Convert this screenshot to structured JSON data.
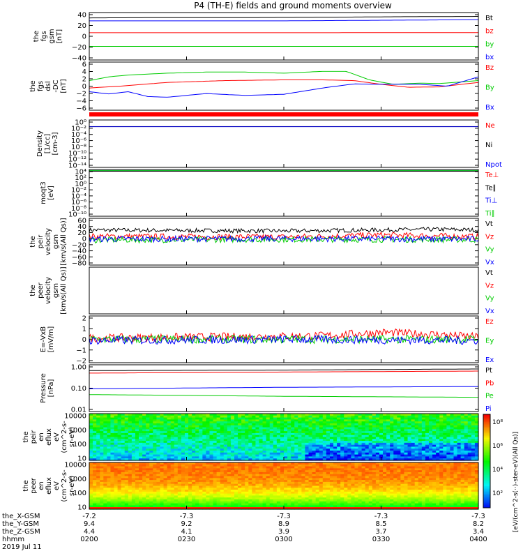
{
  "title": "P4 (TH-E) fields and ground moments overview",
  "date_label": "2019 Jul 11",
  "xaxis": {
    "rows": [
      {
        "label": "the_X-GSM",
        "values": [
          "-7.2",
          "-7.3",
          "-7.3",
          "-7.3",
          "-7.3"
        ]
      },
      {
        "label": "the_Y-GSM",
        "values": [
          "9.4",
          "9.2",
          "8.9",
          "8.5",
          "8.2"
        ]
      },
      {
        "label": "the_Z-GSM",
        "values": [
          "4.4",
          "4.1",
          "3.9",
          "3.7",
          "3.4"
        ]
      },
      {
        "label": "hhmm",
        "values": [
          "0200",
          "0230",
          "0300",
          "0330",
          "0400"
        ]
      }
    ]
  },
  "chart_data": [
    {
      "type": "line",
      "ylabel": [
        "the",
        "fgs",
        "gsm",
        "[nT]"
      ],
      "ylim": [
        -40,
        40
      ],
      "yticks": [
        "40",
        "20",
        "0",
        "−20",
        "−40"
      ],
      "series": [
        {
          "name": "Bt",
          "color": "#000000",
          "x": [
            0,
            0.2,
            0.4,
            0.6,
            0.8,
            1.0
          ],
          "values": [
            31,
            31.5,
            31.5,
            32,
            33,
            33.5
          ]
        },
        {
          "name": "bz",
          "color": "#ff0000",
          "x": [
            0,
            0.5,
            1.0
          ],
          "values": [
            6,
            6,
            6.2
          ]
        },
        {
          "name": "by",
          "color": "#00cc00",
          "x": [
            0,
            0.5,
            1.0
          ],
          "values": [
            -17,
            -17,
            -17
          ]
        },
        {
          "name": "bx",
          "color": "#0000ff",
          "x": [
            0,
            0.25,
            0.5,
            0.75,
            1.0
          ],
          "values": [
            26,
            26,
            26,
            27,
            28
          ]
        }
      ]
    },
    {
      "type": "line",
      "ylabel": [
        "the",
        "fgs",
        "dsl",
        "-DC",
        "[nT]"
      ],
      "ylim": [
        -7,
        6
      ],
      "yticks": [
        "6",
        "4",
        "2",
        "0",
        "−2",
        "−4",
        "−6"
      ],
      "series": [
        {
          "name": "Bz",
          "color": "#ff0000",
          "x": [
            0,
            0.08,
            0.2,
            0.35,
            0.5,
            0.6,
            0.68,
            0.75,
            0.82,
            0.9,
            1.0
          ],
          "values": [
            -1,
            -0.5,
            0.5,
            1,
            1.2,
            1.2,
            1.0,
            0,
            -0.8,
            -0.7,
            0.5
          ]
        },
        {
          "name": "By",
          "color": "#00cc00",
          "x": [
            0,
            0.05,
            0.1,
            0.2,
            0.3,
            0.4,
            0.5,
            0.6,
            0.66,
            0.72,
            0.78,
            0.85,
            0.9,
            1.0
          ],
          "values": [
            1,
            2,
            2.5,
            3,
            3.3,
            3.3,
            3,
            3.5,
            3.5,
            1.2,
            0,
            0.3,
            0.2,
            1
          ]
        },
        {
          "name": "Bx",
          "color": "#0000ff",
          "x": [
            0,
            0.05,
            0.1,
            0.15,
            0.2,
            0.3,
            0.4,
            0.5,
            0.6,
            0.68,
            0.75,
            0.85,
            0.92,
            1.0
          ],
          "values": [
            -2,
            -2.6,
            -2,
            -3.3,
            -3.5,
            -2.5,
            -3,
            -2.7,
            -1,
            0.1,
            0,
            0,
            -0.5,
            2
          ]
        }
      ]
    },
    {
      "type": "line",
      "ylabel": [
        "Density",
        "[1/cc]",
        "[cm-3]"
      ],
      "scale": "log",
      "ylim": [
        1e-14,
        100.0
      ],
      "yticks": [
        "10⁰",
        "10⁻²",
        "10⁻⁴",
        "10⁻⁶",
        "10⁻⁸",
        "10⁻¹⁰",
        "10⁻¹²",
        "10⁻¹⁴"
      ],
      "series": [
        {
          "name": "Ne",
          "color": "#ff0000",
          "x": [
            0,
            1
          ],
          "values": [
            0.6,
            0.6
          ]
        },
        {
          "name": "Ni",
          "color": "#000000",
          "x": [
            0,
            1
          ],
          "values": [
            0.6,
            0.6
          ]
        },
        {
          "name": "Npot",
          "color": "#0000ff",
          "x": [
            0,
            1
          ],
          "values": [
            0.5,
            0.5
          ]
        }
      ]
    },
    {
      "type": "line",
      "ylabel": [
        "moqt3",
        "[eV]"
      ],
      "scale": "log",
      "ylim": [
        1e-10,
        10000.0
      ],
      "yticks": [
        "10⁴",
        "10²",
        "10⁰",
        "10⁻²",
        "10⁻⁴",
        "10⁻⁶",
        "10⁻⁸",
        "10⁻¹⁰"
      ],
      "series": [
        {
          "name": "Te⊥",
          "color": "#ff0000",
          "x": [
            0,
            1
          ],
          "values": [
            3000,
            3000
          ]
        },
        {
          "name": "Te∥",
          "color": "#000000",
          "x": [
            0,
            1
          ],
          "values": [
            3000,
            3000
          ]
        },
        {
          "name": "Ti⊥",
          "color": "#0000ff",
          "x": [
            0,
            1
          ],
          "values": [
            5000,
            5000
          ]
        },
        {
          "name": "Ti∥",
          "color": "#00cc00",
          "x": [
            0,
            1
          ],
          "values": [
            5000,
            5000
          ]
        }
      ]
    },
    {
      "type": "line",
      "ylabel": [
        "the",
        "peir",
        "velocity",
        "gsm",
        "[km/s(All Qs)]"
      ],
      "ylim": [
        -80,
        60
      ],
      "yticks": [
        "60",
        "40",
        "20",
        "0",
        "−20",
        "−40",
        "−60",
        "−80"
      ],
      "noise": 9,
      "series": [
        {
          "name": "Vt",
          "color": "#000000",
          "x": [
            0,
            0.5,
            0.9,
            1.0
          ],
          "values": [
            25,
            22,
            27,
            25
          ]
        },
        {
          "name": "Vz",
          "color": "#ff0000",
          "x": [
            0,
            0.5,
            0.75,
            1.0
          ],
          "values": [
            6,
            4,
            10,
            5
          ]
        },
        {
          "name": "Vy",
          "color": "#00cc00",
          "x": [
            0,
            0.5,
            1.0
          ],
          "values": [
            -5,
            -3,
            -4
          ]
        },
        {
          "name": "Vx",
          "color": "#0000ff",
          "x": [
            0,
            0.5,
            1.0
          ],
          "values": [
            -2,
            -1,
            -2
          ]
        }
      ]
    },
    {
      "type": "line",
      "ylabel": [
        "the",
        "peer",
        "velocity",
        "gsm",
        "[km/s(All Qs)]"
      ],
      "ylim": [
        -1,
        1
      ],
      "yticks": [],
      "series": [
        {
          "name": "Vt",
          "color": "#000000",
          "x": [],
          "values": []
        },
        {
          "name": "Vz",
          "color": "#ff0000",
          "x": [],
          "values": []
        },
        {
          "name": "Vy",
          "color": "#00cc00",
          "x": [],
          "values": []
        },
        {
          "name": "Vx",
          "color": "#0000ff",
          "x": [],
          "values": []
        }
      ]
    },
    {
      "type": "line",
      "ylabel": [
        "E=-VxB",
        "[mV/m]"
      ],
      "ylim": [
        -2,
        2
      ],
      "yticks": [
        "2",
        "1",
        "0",
        "−1",
        "−2"
      ],
      "noise": 0.35,
      "series": [
        {
          "name": "Ez",
          "color": "#ff0000",
          "x": [
            0,
            0.3,
            0.6,
            0.75,
            0.9,
            1.0
          ],
          "values": [
            0.1,
            0.2,
            0.3,
            0.6,
            0.4,
            0.2
          ]
        },
        {
          "name": "Ey",
          "color": "#00cc00",
          "x": [
            0,
            0.5,
            1.0
          ],
          "values": [
            0,
            0,
            0
          ]
        },
        {
          "name": "Ex",
          "color": "#0000ff",
          "x": [
            0,
            0.5,
            1.0
          ],
          "values": [
            -0.1,
            0,
            -0.1
          ]
        }
      ]
    },
    {
      "type": "line",
      "ylabel": [
        "Pressure",
        "[nPa]"
      ],
      "scale": "log",
      "ylim": [
        0.01,
        1.4
      ],
      "yticks": [
        "1.00",
        "0.10",
        "0.01"
      ],
      "series": [
        {
          "name": "Pt",
          "color": "#000000",
          "x": [
            0,
            0.5,
            1.0
          ],
          "values": [
            0.76,
            0.8,
            0.9
          ]
        },
        {
          "name": "Pb",
          "color": "#ff0000",
          "x": [
            0,
            0.5,
            1.0
          ],
          "values": [
            0.58,
            0.65,
            0.72
          ]
        },
        {
          "name": "Pe",
          "color": "#00cc00",
          "x": [
            0,
            0.5,
            1.0
          ],
          "values": [
            0.06,
            0.05,
            0.045
          ]
        },
        {
          "name": "Pi",
          "color": "#0000ff",
          "x": [
            0,
            0.5,
            1.0
          ],
          "values": [
            0.11,
            0.13,
            0.14
          ]
        }
      ]
    },
    {
      "type": "heatmap",
      "ylabel": [
        "the",
        "peir",
        "en",
        "eflux",
        "eV",
        "(cm^2-s-",
        "sr-eV)"
      ],
      "yticks": [
        "10000",
        "1000",
        "100",
        "10"
      ]
    },
    {
      "type": "heatmap",
      "ylabel": [
        "the",
        "peer",
        "en",
        "eflux",
        "eV",
        "(cm^2-s-",
        "sr-eV)"
      ],
      "yticks": [
        "10000",
        "1000",
        "100",
        "10"
      ]
    }
  ],
  "colorbar": {
    "label": "[eV/(cm^2-s(··)-ster-eV)(All Qs)]",
    "ticks": [
      "10⁸",
      "10⁶",
      "10⁴",
      "10²"
    ]
  }
}
